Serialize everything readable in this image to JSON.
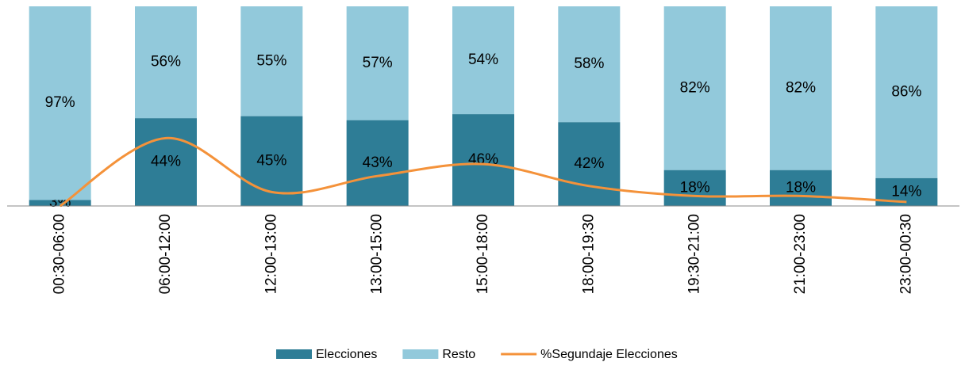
{
  "chart_data": {
    "type": "stacked_bar_line",
    "categories": [
      "00:30-06:00",
      "06:00-12:00",
      "12:00-13:00",
      "13:00-15:00",
      "15:00-18:00",
      "18:00-19:30",
      "19:30-21:00",
      "21:00-23:00",
      "23:00-00:30"
    ],
    "series": [
      {
        "name": "Elecciones",
        "color": "#2e7d96",
        "values": [
          3,
          44,
          45,
          43,
          46,
          42,
          18,
          18,
          14
        ],
        "value_labels": [
          "3%",
          "44%",
          "45%",
          "43%",
          "46%",
          "42%",
          "18%",
          "18%",
          "14%"
        ]
      },
      {
        "name": "Resto",
        "color": "#92c9db",
        "values": [
          97,
          56,
          55,
          57,
          54,
          58,
          82,
          82,
          86
        ],
        "value_labels": [
          "97%",
          "56%",
          "55%",
          "57%",
          "54%",
          "58%",
          "82%",
          "82%",
          "86%"
        ]
      },
      {
        "name": "%Segundaje Elecciones",
        "color": "#f4923a",
        "type": "line",
        "values": [
          0,
          34,
          7,
          15,
          21,
          10,
          5,
          5,
          2
        ]
      }
    ],
    "ylim": [
      0,
      100
    ]
  }
}
